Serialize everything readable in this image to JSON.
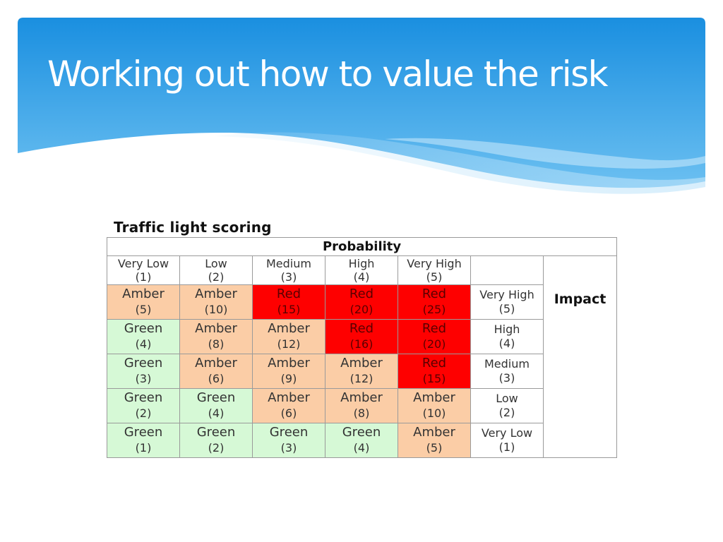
{
  "slide": {
    "title": "Working out how to value the risk"
  },
  "figure": {
    "title": "Traffic light scoring",
    "probability_label": "Probability",
    "impact_label": "Impact",
    "columns": [
      {
        "name": "Very Low",
        "score": "(1)"
      },
      {
        "name": "Low",
        "score": "(2)"
      },
      {
        "name": "Medium",
        "score": "(3)"
      },
      {
        "name": "High",
        "score": "(4)"
      },
      {
        "name": "Very High",
        "score": "(5)"
      }
    ],
    "rows": [
      {
        "impact": {
          "name": "Very High",
          "score": "(5)"
        },
        "cells": [
          {
            "level": "Amber",
            "score": "(5)",
            "color": "#fbcda6"
          },
          {
            "level": "Amber",
            "score": "(10)",
            "color": "#fbcda6"
          },
          {
            "level": "Red",
            "score": "(15)",
            "color": "#fe0000"
          },
          {
            "level": "Red",
            "score": "(20)",
            "color": "#fe0000"
          },
          {
            "level": "Red",
            "score": "(25)",
            "color": "#fe0000"
          }
        ]
      },
      {
        "impact": {
          "name": "High",
          "score": "(4)"
        },
        "cells": [
          {
            "level": "Green",
            "score": "(4)",
            "color": "#d6f9d6"
          },
          {
            "level": "Amber",
            "score": "(8)",
            "color": "#fbcda6"
          },
          {
            "level": "Amber",
            "score": "(12)",
            "color": "#fbcda6"
          },
          {
            "level": "Red",
            "score": "(16)",
            "color": "#fe0000"
          },
          {
            "level": "Red",
            "score": "(20)",
            "color": "#fe0000"
          }
        ]
      },
      {
        "impact": {
          "name": "Medium",
          "score": "(3)"
        },
        "cells": [
          {
            "level": "Green",
            "score": "(3)",
            "color": "#d6f9d6"
          },
          {
            "level": "Amber",
            "score": "(6)",
            "color": "#fbcda6"
          },
          {
            "level": "Amber",
            "score": "(9)",
            "color": "#fbcda6"
          },
          {
            "level": "Amber",
            "score": "(12)",
            "color": "#fbcda6"
          },
          {
            "level": "Red",
            "score": "(15)",
            "color": "#fe0000"
          }
        ]
      },
      {
        "impact": {
          "name": "Low",
          "score": "(2)"
        },
        "cells": [
          {
            "level": "Green",
            "score": "(2)",
            "color": "#d6f9d6"
          },
          {
            "level": "Green",
            "score": "(4)",
            "color": "#d6f9d6"
          },
          {
            "level": "Amber",
            "score": "(6)",
            "color": "#fbcda6"
          },
          {
            "level": "Amber",
            "score": "(8)",
            "color": "#fbcda6"
          },
          {
            "level": "Amber",
            "score": "(10)",
            "color": "#fbcda6"
          }
        ]
      },
      {
        "impact": {
          "name": "Very Low",
          "score": "(1)"
        },
        "cells": [
          {
            "level": "Green",
            "score": "(1)",
            "color": "#d6f9d6"
          },
          {
            "level": "Green",
            "score": "(2)",
            "color": "#d6f9d6"
          },
          {
            "level": "Green",
            "score": "(3)",
            "color": "#d6f9d6"
          },
          {
            "level": "Green",
            "score": "(4)",
            "color": "#d6f9d6"
          },
          {
            "level": "Amber",
            "score": "(5)",
            "color": "#fbcda6"
          }
        ]
      }
    ]
  },
  "colors": {
    "banner_top": "#1a8fe0",
    "banner_bottom": "#7cc5f2",
    "amber": "#fbcda6",
    "green": "#d6f9d6",
    "red": "#fe0000"
  }
}
